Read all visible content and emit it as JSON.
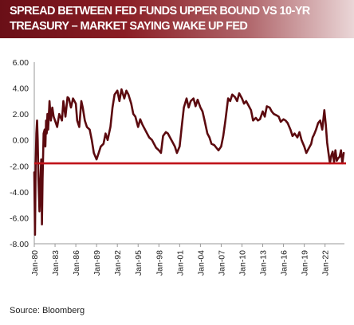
{
  "header": {
    "title_line1": "SPREAD BETWEEN FED FUNDS UPPER BOUND VS 10-YR",
    "title_line2": "TREASURY – MARKET SAYING WAKE UP FED"
  },
  "source": "Source:  Bloomberg",
  "colors": {
    "header_dark": "#6a0f17",
    "header_light": "#ead6d7",
    "series": "#5c0a0f",
    "reference_line": "#c0131a",
    "axis": "#999999"
  },
  "chart_data": {
    "type": "line",
    "title": "SPREAD BETWEEN FED FUNDS UPPER BOUND VS 10-YR TREASURY – MARKET SAYING WAKE UP FED",
    "xlabel": "",
    "ylabel": "",
    "ylim": [
      -8,
      6
    ],
    "xlim": [
      1980,
      2024.8
    ],
    "y_ticks": [
      6,
      4,
      2,
      0,
      -2,
      -4,
      -6,
      -8
    ],
    "y_tick_labels": [
      "6.00",
      "4.00",
      "2.00",
      "0.00",
      "-2.00",
      "-4.00",
      "-6.00",
      "-8.00"
    ],
    "x_tick_years": [
      1980,
      1983,
      1986,
      1989,
      1992,
      1995,
      1998,
      2001,
      2004,
      2007,
      2010,
      2013,
      2016,
      2019,
      2022
    ],
    "x_tick_labels": [
      "Jan-80",
      "Jan-83",
      "Jan-86",
      "Jan-89",
      "Jan-92",
      "Jan-95",
      "Jan-98",
      "Jan-01",
      "Jan-04",
      "Jan-07",
      "Jan-10",
      "Jan-13",
      "Jan-16",
      "Jan-19",
      "Jan-22"
    ],
    "grid": false,
    "legend": "none",
    "reference_line": {
      "y": -1.8
    },
    "series": [
      {
        "x": [
          1980.0,
          1980.1,
          1980.2,
          1980.3,
          1980.4,
          1980.5,
          1980.6,
          1980.75,
          1980.9,
          1981.0,
          1981.1,
          1981.2,
          1981.35,
          1981.5,
          1981.6,
          1981.7,
          1981.8,
          1981.9,
          1982.0,
          1982.2,
          1982.4,
          1982.6,
          1982.8,
          1983.0,
          1983.3,
          1983.6,
          1984.0,
          1984.2,
          1984.5,
          1984.8,
          1985.0,
          1985.3,
          1985.6,
          1986.0,
          1986.2,
          1986.5,
          1986.8,
          1987.0,
          1987.3,
          1987.6,
          1988.0,
          1988.3,
          1988.6,
          1989.0,
          1989.3,
          1989.6,
          1990.0,
          1990.3,
          1990.6,
          1991.0,
          1991.3,
          1991.6,
          1992.0,
          1992.3,
          1992.6,
          1993.0,
          1993.3,
          1993.6,
          1994.0,
          1994.3,
          1994.6,
          1995.0,
          1995.3,
          1995.6,
          1996.0,
          1996.3,
          1996.6,
          1997.0,
          1997.3,
          1997.6,
          1998.0,
          1998.3,
          1998.6,
          1999.0,
          1999.3,
          1999.6,
          2000.0,
          2000.3,
          2000.6,
          2001.0,
          2001.3,
          2001.6,
          2002.0,
          2002.3,
          2002.6,
          2003.0,
          2003.3,
          2003.6,
          2004.0,
          2004.3,
          2004.6,
          2005.0,
          2005.3,
          2005.6,
          2006.0,
          2006.3,
          2006.6,
          2007.0,
          2007.3,
          2007.6,
          2008.0,
          2008.3,
          2008.6,
          2009.0,
          2009.3,
          2009.6,
          2010.0,
          2010.3,
          2010.6,
          2011.0,
          2011.3,
          2011.6,
          2012.0,
          2012.3,
          2012.6,
          2013.0,
          2013.3,
          2013.6,
          2014.0,
          2014.3,
          2014.6,
          2015.0,
          2015.3,
          2015.6,
          2016.0,
          2016.3,
          2016.6,
          2017.0,
          2017.3,
          2017.6,
          2018.0,
          2018.3,
          2018.6,
          2019.0,
          2019.3,
          2019.6,
          2020.0,
          2020.2,
          2020.4,
          2020.7,
          2021.0,
          2021.3,
          2021.6,
          2021.9,
          2022.1,
          2022.3,
          2022.5,
          2022.7,
          2022.9,
          2023.1,
          2023.3,
          2023.5,
          2023.7,
          2023.9,
          2024.1,
          2024.3,
          2024.5,
          2024.7
        ],
        "values": [
          -2.5,
          -7.3,
          -2.0,
          0.5,
          1.5,
          0.0,
          -3.0,
          -5.5,
          -3.0,
          -1.5,
          -6.5,
          -3.0,
          0.5,
          0.8,
          -0.5,
          1.5,
          0.5,
          2.0,
          0.8,
          3.0,
          1.5,
          2.5,
          1.8,
          1.5,
          1.0,
          2.0,
          1.5,
          3.0,
          1.8,
          3.3,
          3.2,
          2.5,
          3.2,
          2.8,
          1.5,
          1.0,
          3.0,
          2.5,
          1.5,
          1.0,
          0.8,
          0.0,
          -1.0,
          -1.5,
          -1.0,
          -0.5,
          -0.3,
          0.5,
          0.0,
          1.0,
          2.5,
          3.5,
          3.8,
          3.0,
          3.9,
          3.2,
          3.8,
          3.5,
          2.8,
          2.0,
          1.8,
          1.0,
          1.6,
          1.2,
          0.8,
          0.5,
          0.2,
          0.0,
          -0.3,
          -0.6,
          -0.8,
          -1.0,
          0.3,
          0.6,
          0.5,
          0.2,
          -0.2,
          -0.5,
          -1.0,
          -0.5,
          1.0,
          2.5,
          3.2,
          2.5,
          3.0,
          3.2,
          2.6,
          3.1,
          2.5,
          2.2,
          1.5,
          0.5,
          0.2,
          -0.3,
          -0.4,
          -0.6,
          -0.8,
          -0.5,
          0.3,
          1.5,
          3.2,
          3.0,
          3.5,
          3.3,
          3.0,
          3.6,
          3.2,
          2.8,
          3.0,
          2.6,
          2.3,
          1.5,
          1.7,
          1.5,
          1.6,
          2.2,
          1.8,
          2.6,
          2.5,
          2.2,
          2.0,
          1.9,
          1.8,
          1.4,
          1.6,
          1.5,
          1.3,
          0.8,
          0.3,
          0.5,
          0.2,
          0.6,
          0.0,
          -0.5,
          -1.0,
          -0.7,
          -0.3,
          0.2,
          0.4,
          0.8,
          1.3,
          1.5,
          0.8,
          2.3,
          1.2,
          -0.2,
          -1.0,
          -1.8,
          -1.2,
          -0.9,
          -1.7,
          -0.8,
          -1.6,
          -1.4,
          -1.3,
          -0.8,
          -1.8,
          -1.0
        ]
      }
    ]
  }
}
